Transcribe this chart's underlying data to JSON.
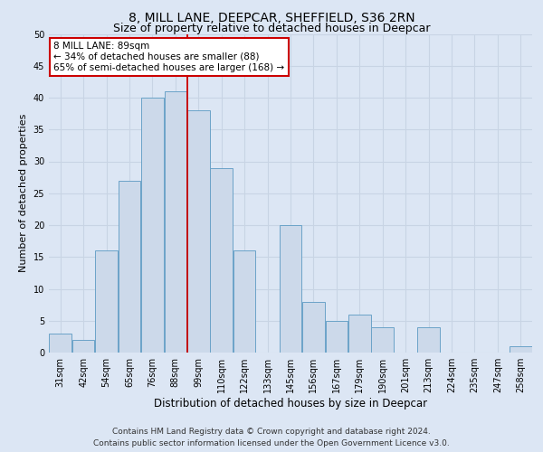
{
  "title_line1": "8, MILL LANE, DEEPCAR, SHEFFIELD, S36 2RN",
  "title_line2": "Size of property relative to detached houses in Deepcar",
  "xlabel": "Distribution of detached houses by size in Deepcar",
  "ylabel": "Number of detached properties",
  "categories": [
    "31sqm",
    "42sqm",
    "54sqm",
    "65sqm",
    "76sqm",
    "88sqm",
    "99sqm",
    "110sqm",
    "122sqm",
    "133sqm",
    "145sqm",
    "156sqm",
    "167sqm",
    "179sqm",
    "190sqm",
    "201sqm",
    "213sqm",
    "224sqm",
    "235sqm",
    "247sqm",
    "258sqm"
  ],
  "values": [
    3,
    2,
    16,
    27,
    40,
    41,
    38,
    29,
    16,
    0,
    20,
    8,
    5,
    6,
    4,
    0,
    4,
    0,
    0,
    0,
    1
  ],
  "bar_color": "#ccd9ea",
  "bar_edge_color": "#6ba3c8",
  "vline_color": "#cc0000",
  "vline_x": 5.5,
  "ylim": [
    0,
    50
  ],
  "yticks": [
    0,
    5,
    10,
    15,
    20,
    25,
    30,
    35,
    40,
    45,
    50
  ],
  "grid_color": "#c8d4e4",
  "bg_color": "#dce6f4",
  "annotation_title": "8 MILL LANE: 89sqm",
  "annotation_line1": "← 34% of detached houses are smaller (88)",
  "annotation_line2": "65% of semi-detached houses are larger (168) →",
  "annotation_box_color": "#ffffff",
  "annotation_edge_color": "#cc0000",
  "footer_line1": "Contains HM Land Registry data © Crown copyright and database right 2024.",
  "footer_line2": "Contains public sector information licensed under the Open Government Licence v3.0.",
  "title_fontsize": 10,
  "subtitle_fontsize": 9,
  "xlabel_fontsize": 8.5,
  "ylabel_fontsize": 8,
  "tick_fontsize": 7,
  "footer_fontsize": 6.5,
  "annot_fontsize": 7.5
}
